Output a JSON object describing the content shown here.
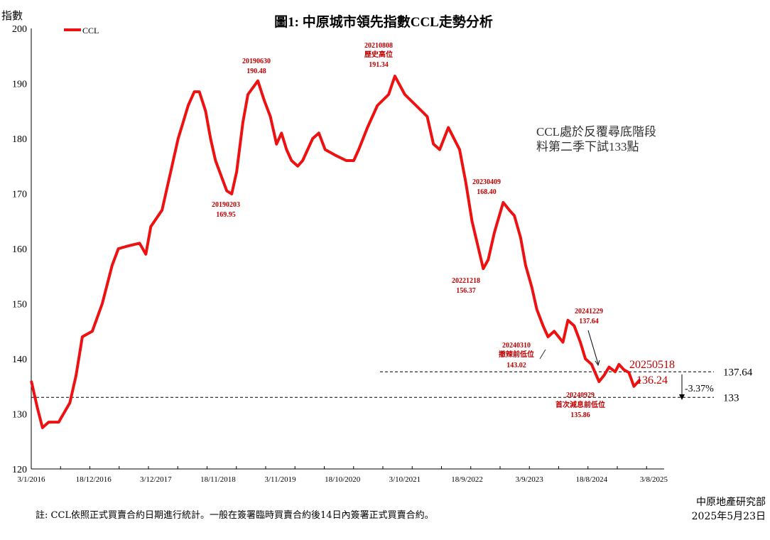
{
  "chart_data": {
    "type": "line",
    "title": "圖1: 中原城市領先指數CCL走勢分析",
    "ylabel": "指數",
    "ylim": [
      120,
      200
    ],
    "yticks": [
      120,
      130,
      140,
      150,
      160,
      170,
      180,
      190,
      200
    ],
    "xlim": [
      "2016-01-03",
      "2025-09-30"
    ],
    "xtick_labels": [
      {
        "date": "2016-01-03",
        "label": "3/1/2016"
      },
      {
        "date": "2016-12-18",
        "label": "18/12/2016"
      },
      {
        "date": "2017-12-03",
        "label": "3/12/2017"
      },
      {
        "date": "2018-11-18",
        "label": "18/11/2018"
      },
      {
        "date": "2019-11-03",
        "label": "3/11/2019"
      },
      {
        "date": "2020-10-18",
        "label": "18/10/2020"
      },
      {
        "date": "2021-10-03",
        "label": "3/10/2021"
      },
      {
        "date": "2022-09-18",
        "label": "18/9/2022"
      },
      {
        "date": "2023-09-03",
        "label": "3/9/2023"
      },
      {
        "date": "2024-08-18",
        "label": "18/8/2024"
      },
      {
        "date": "2025-08-03",
        "label": "3/8/2025"
      }
    ],
    "grid": false,
    "legend": "top-left",
    "series": [
      {
        "name": "CCL",
        "color": "#ee1111",
        "points": [
          [
            "2016-01-03",
            136
          ],
          [
            "2016-02-07",
            131
          ],
          [
            "2016-03-06",
            127.5
          ],
          [
            "2016-04-10",
            128.5
          ],
          [
            "2016-06-05",
            128.5
          ],
          [
            "2016-08-07",
            132
          ],
          [
            "2016-09-11",
            137
          ],
          [
            "2016-10-16",
            144
          ],
          [
            "2016-12-11",
            145
          ],
          [
            "2017-02-05",
            150
          ],
          [
            "2017-04-02",
            157
          ],
          [
            "2017-05-07",
            160
          ],
          [
            "2017-07-02",
            160.5
          ],
          [
            "2017-09-03",
            161
          ],
          [
            "2017-10-08",
            159
          ],
          [
            "2017-11-05",
            164
          ],
          [
            "2018-01-07",
            167
          ],
          [
            "2018-03-04",
            175
          ],
          [
            "2018-04-08",
            180
          ],
          [
            "2018-05-06",
            183
          ],
          [
            "2018-06-03",
            186
          ],
          [
            "2018-07-08",
            188.5
          ],
          [
            "2018-08-05",
            188.5
          ],
          [
            "2018-09-09",
            185
          ],
          [
            "2018-10-07",
            180
          ],
          [
            "2018-11-04",
            176
          ],
          [
            "2019-01-06",
            170.5
          ],
          [
            "2019-02-03",
            169.95
          ],
          [
            "2019-03-03",
            174
          ],
          [
            "2019-04-07",
            183
          ],
          [
            "2019-05-05",
            188
          ],
          [
            "2019-06-30",
            190.48
          ],
          [
            "2019-08-04",
            187
          ],
          [
            "2019-09-08",
            184
          ],
          [
            "2019-10-13",
            179
          ],
          [
            "2019-11-10",
            181
          ],
          [
            "2019-12-08",
            178
          ],
          [
            "2020-01-05",
            176
          ],
          [
            "2020-02-09",
            175
          ],
          [
            "2020-03-08",
            176
          ],
          [
            "2020-05-03",
            180
          ],
          [
            "2020-06-07",
            181
          ],
          [
            "2020-07-12",
            178
          ],
          [
            "2020-09-06",
            177
          ],
          [
            "2020-11-08",
            176
          ],
          [
            "2020-12-20",
            176
          ],
          [
            "2021-01-17",
            178
          ],
          [
            "2021-03-07",
            182
          ],
          [
            "2021-05-02",
            186
          ],
          [
            "2021-07-04",
            188
          ],
          [
            "2021-08-08",
            191.34
          ],
          [
            "2021-10-03",
            188
          ],
          [
            "2021-12-05",
            186
          ],
          [
            "2022-02-06",
            184
          ],
          [
            "2022-03-13",
            179
          ],
          [
            "2022-04-17",
            178
          ],
          [
            "2022-06-05",
            182
          ],
          [
            "2022-08-07",
            178
          ],
          [
            "2022-09-11",
            172
          ],
          [
            "2022-10-16",
            165
          ],
          [
            "2022-12-18",
            156.37
          ],
          [
            "2023-01-15",
            158
          ],
          [
            "2023-02-19",
            163
          ],
          [
            "2023-04-09",
            168.4
          ],
          [
            "2023-05-14",
            167
          ],
          [
            "2023-06-11",
            166
          ],
          [
            "2023-07-16",
            162
          ],
          [
            "2023-08-13",
            157
          ],
          [
            "2023-09-17",
            153
          ],
          [
            "2023-10-15",
            149
          ],
          [
            "2023-11-19",
            146
          ],
          [
            "2023-12-17",
            144
          ],
          [
            "2024-01-21",
            145
          ],
          [
            "2024-03-10",
            143.02
          ],
          [
            "2024-04-07",
            147
          ],
          [
            "2024-05-12",
            146
          ],
          [
            "2024-06-16",
            143
          ],
          [
            "2024-07-14",
            140
          ],
          [
            "2024-08-18",
            139
          ],
          [
            "2024-09-29",
            135.86
          ],
          [
            "2024-10-27",
            137
          ],
          [
            "2024-11-24",
            138.5
          ],
          [
            "2024-12-29",
            137.64
          ],
          [
            "2025-01-19",
            139
          ],
          [
            "2025-02-16",
            138
          ],
          [
            "2025-03-16",
            137.5
          ],
          [
            "2025-04-13",
            135
          ],
          [
            "2025-05-18",
            136.24
          ]
        ]
      }
    ],
    "annotations": [
      {
        "date": "20190203",
        "value": "169.95"
      },
      {
        "date": "20190630",
        "value": "190.48"
      },
      {
        "date": "20210808",
        "note": "歷史高位",
        "value": "191.34"
      },
      {
        "date": "20230409",
        "value": "168.40"
      },
      {
        "date": "20221218",
        "value": "156.37"
      },
      {
        "date": "20240310",
        "note": "撤辣前低位",
        "value": "143.02"
      },
      {
        "date": "20241229",
        "value": "137.64"
      },
      {
        "date": "20240929",
        "note": "首次減息前低位",
        "value": "135.86"
      },
      {
        "date": "20250518",
        "value": "136.24"
      }
    ],
    "reference_lines": [
      {
        "value": 137.64,
        "label": "137.64"
      },
      {
        "value": 133,
        "label": "133"
      }
    ],
    "change_label": "-3.37%",
    "commentary": [
      "CCL處於反覆尋底階段",
      "料第二季下試133點"
    ]
  },
  "footer": {
    "note": "註: CCL依照正式買賣合約日期進行統計。一般在簽署臨時買賣合約後14日內簽署正式買賣合約。",
    "source": "中原地產研究部",
    "date": "2025年5月23日"
  }
}
